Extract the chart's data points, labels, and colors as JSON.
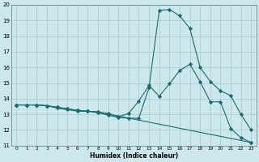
{
  "xlabel": "Humidex (Indice chaleur)",
  "bg_color": "#cce8ec",
  "grid_color": "#aacfd6",
  "line_color": "#1a6b6b",
  "xlim": [
    -0.5,
    23.5
  ],
  "ylim": [
    11,
    20
  ],
  "xticks": [
    0,
    1,
    2,
    3,
    4,
    5,
    6,
    7,
    8,
    9,
    10,
    11,
    12,
    13,
    14,
    15,
    16,
    17,
    18,
    19,
    20,
    21,
    22,
    23
  ],
  "yticks": [
    11,
    12,
    13,
    14,
    15,
    16,
    17,
    18,
    19,
    20
  ],
  "line1_x": [
    0,
    1,
    2,
    3,
    4,
    5,
    6,
    7,
    8,
    9,
    10,
    11,
    12,
    13,
    14,
    15,
    16,
    17,
    18,
    19,
    20,
    21,
    22,
    23
  ],
  "line1_y": [
    13.6,
    13.6,
    13.6,
    13.55,
    13.4,
    13.3,
    13.2,
    13.2,
    13.1,
    12.95,
    12.8,
    12.75,
    12.75,
    14.7,
    19.65,
    19.7,
    19.3,
    18.5,
    16.0,
    15.1,
    14.5,
    14.2,
    13.0,
    12.0
  ],
  "line2_x": [
    0,
    1,
    2,
    3,
    4,
    5,
    6,
    7,
    8,
    9,
    10,
    11,
    12,
    13,
    14,
    15,
    16,
    17,
    18,
    19,
    20,
    21,
    22,
    23
  ],
  "line2_y": [
    13.6,
    13.6,
    13.6,
    13.55,
    13.45,
    13.35,
    13.25,
    13.2,
    13.15,
    13.05,
    12.85,
    13.05,
    13.85,
    14.85,
    14.15,
    14.95,
    15.8,
    16.2,
    15.1,
    13.8,
    13.8,
    12.1,
    11.5,
    11.2
  ],
  "line3_x": [
    0,
    1,
    2,
    3,
    4,
    5,
    6,
    7,
    8,
    23
  ],
  "line3_y": [
    13.6,
    13.6,
    13.6,
    13.55,
    13.45,
    13.35,
    13.25,
    13.2,
    13.15,
    11.2
  ]
}
